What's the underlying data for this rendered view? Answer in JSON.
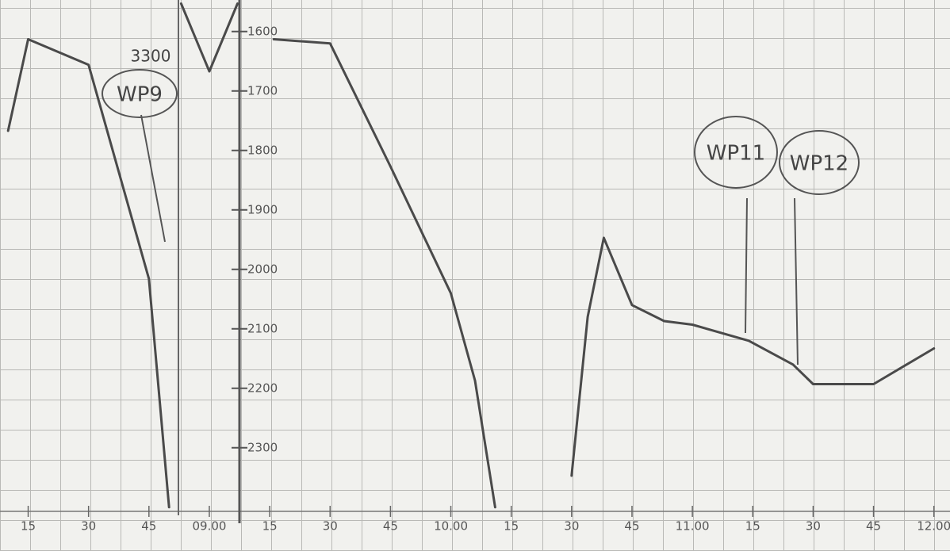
{
  "chart_data": {
    "type": "line",
    "x": [
      10,
      15,
      30,
      45,
      50,
      null,
      53,
      60,
      67,
      null,
      76,
      90,
      105,
      120,
      126,
      131,
      null,
      150,
      154,
      158,
      165,
      173,
      180,
      194,
      205,
      210,
      225,
      240
    ],
    "series": [
      {
        "color": "#4a4a4a",
        "values": [
          1767,
          1613,
          1656,
          2016,
          2400,
          null,
          1553,
          1667,
          1553,
          null,
          1613,
          1620,
          1827,
          2040,
          2187,
          2400,
          null,
          2347,
          2080,
          1947,
          2060,
          2087,
          2093,
          2120,
          2160,
          2193,
          2193,
          2133
        ]
      }
    ],
    "xlim": [
      8,
      244
    ],
    "ylim": [
      1547,
      2407
    ],
    "y_inverted": true,
    "xticks": [
      15,
      30,
      45,
      {
        "value": 60,
        "label": "09.00"
      },
      {
        "value": 75,
        "label": "15"
      },
      {
        "value": 90,
        "label": "30"
      },
      {
        "value": 105,
        "label": "45"
      },
      {
        "value": 120,
        "label": "10.00"
      },
      {
        "value": 135,
        "label": "15"
      },
      {
        "value": 150,
        "label": "30"
      },
      {
        "value": 165,
        "label": "45"
      },
      {
        "value": 180,
        "label": "11.00"
      },
      {
        "value": 195,
        "label": "15"
      },
      {
        "value": 210,
        "label": "30"
      },
      {
        "value": 225,
        "label": "45"
      },
      {
        "value": 240,
        "label": "12.00"
      }
    ],
    "yticks": [
      1600,
      1700,
      1800,
      1900,
      2000,
      2100,
      2200,
      2300
    ],
    "annotations": [
      "3300",
      "WP9",
      "WP11",
      "WP12"
    ]
  }
}
